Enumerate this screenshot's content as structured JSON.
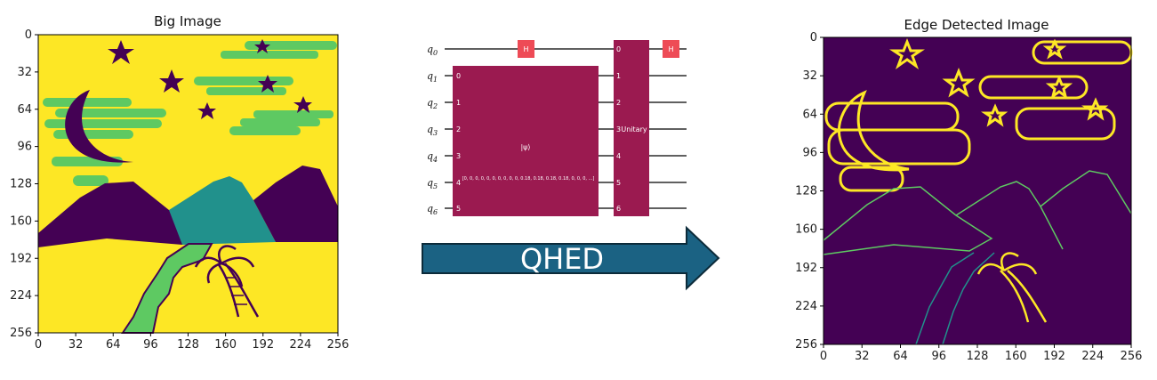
{
  "left_panel": {
    "title": "Big Image",
    "x_ticks": [
      "0",
      "32",
      "64",
      "96",
      "128",
      "160",
      "192",
      "224",
      "256"
    ],
    "y_ticks": [
      "0",
      "32",
      "64",
      "96",
      "128",
      "160",
      "192",
      "224",
      "256"
    ]
  },
  "circuit": {
    "qubits": [
      "q0",
      "q1",
      "q2",
      "q3",
      "q4",
      "q5",
      "q6"
    ],
    "h_gate_label": "H",
    "init_gate_label": "|ψ⟩",
    "init_gate_params": "[0, 0, 0, 0, 0, 0, 0, 0, 0, 0, 0.18, 0.18, 0.18, 0.18, 0, 0, 0, ...]",
    "init_indices": [
      "0",
      "1",
      "2",
      "3",
      "4",
      "5"
    ],
    "unitary_label": "Unitary",
    "unitary_indices": [
      "0",
      "1",
      "2",
      "3",
      "4",
      "5",
      "6"
    ],
    "colors": {
      "gate": "#9b1a50",
      "h_gate": "#ee4b56",
      "wire": "#000000"
    }
  },
  "arrow": {
    "label": "QHED",
    "colors": {
      "fill": "#1b6283",
      "stroke": "#0c2b3a"
    }
  },
  "right_panel": {
    "title": "Edge Detected Image",
    "x_ticks": [
      "0",
      "32",
      "64",
      "96",
      "128",
      "160",
      "192",
      "224",
      "256"
    ],
    "y_ticks": [
      "0",
      "32",
      "64",
      "96",
      "128",
      "160",
      "192",
      "224",
      "256"
    ]
  },
  "palette": {
    "viridis_dark": "#440154",
    "viridis_teal": "#21918c",
    "viridis_green": "#5ec962",
    "viridis_yellow": "#fde725"
  }
}
